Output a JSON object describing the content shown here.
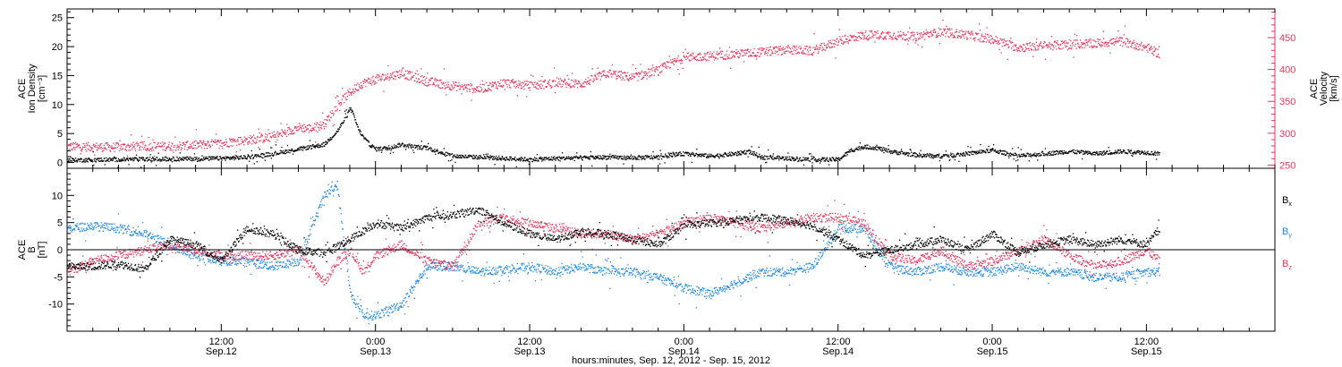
{
  "colors": {
    "black": "#000000",
    "pink": "#e8365d",
    "blue": "#1e88e5"
  },
  "x_axis": {
    "title": "hours:minutes, Sep. 12, 2012 - Sep. 15, 2012",
    "range_hours": [
      0,
      94
    ],
    "ticks": [
      {
        "hour": 12,
        "time": "12:00",
        "date": "Sep.12"
      },
      {
        "hour": 24,
        "time": "0:00",
        "date": "Sep.13"
      },
      {
        "hour": 36,
        "time": "12:00",
        "date": "Sep.13"
      },
      {
        "hour": 48,
        "time": "0:00",
        "date": "Sep.14"
      },
      {
        "hour": 60,
        "time": "12:00",
        "date": "Sep.14"
      },
      {
        "hour": 72,
        "time": "0:00",
        "date": "Sep.15"
      },
      {
        "hour": 84,
        "time": "12:00",
        "date": "Sep.15"
      }
    ]
  },
  "chart_data": [
    {
      "type": "scatter",
      "panel": "top",
      "ylabel_left": [
        "ACE",
        "Ion Density",
        "[cm⁻³]"
      ],
      "ylabel_right": [
        "ACE",
        "Velocity",
        "[km/s]"
      ],
      "ylim_left": [
        -1,
        26.5
      ],
      "ylim_right": [
        245,
        495
      ],
      "yticks_left": [
        "0",
        "5",
        "10",
        "15",
        "20",
        "25"
      ],
      "yticks_right": [
        "250",
        "300",
        "350",
        "400",
        "450"
      ],
      "series": [
        {
          "axis": "left",
          "color": "#000000",
          "x": [
            0,
            4,
            8,
            12,
            14,
            16,
            18,
            20,
            21,
            21.7,
            22,
            22.3,
            22.6,
            23,
            23.5,
            24,
            25,
            26,
            27,
            28,
            30,
            32,
            34,
            36,
            38,
            40,
            42,
            44,
            46,
            47,
            48,
            50,
            52,
            53,
            54,
            56,
            58,
            60,
            61,
            62,
            63,
            64,
            66,
            68,
            70,
            72,
            74,
            76,
            78,
            80,
            82,
            84,
            85
          ],
          "y": [
            0.5,
            0.6,
            0.7,
            0.8,
            1.0,
            1.6,
            2.4,
            3.2,
            5.5,
            8.0,
            9.5,
            8.0,
            6.0,
            4.5,
            3.2,
            2.4,
            2.6,
            3.2,
            2.8,
            2.6,
            1.2,
            1.0,
            0.8,
            0.6,
            0.8,
            0.9,
            1.0,
            0.9,
            1.0,
            1.4,
            1.6,
            1.2,
            1.6,
            2.0,
            1.0,
            0.8,
            0.6,
            0.6,
            2.2,
            2.8,
            2.6,
            2.0,
            1.4,
            1.2,
            1.6,
            2.2,
            1.2,
            1.6,
            2.0,
            1.6,
            2.0,
            1.8,
            1.6
          ]
        },
        {
          "axis": "right",
          "color": "#e8365d",
          "x": [
            0,
            3,
            6,
            9,
            12,
            14,
            16,
            18,
            19,
            20,
            21,
            22,
            23,
            24,
            26,
            28,
            30,
            32,
            34,
            36,
            38,
            40,
            42,
            44,
            46,
            48,
            50,
            52,
            54,
            56,
            58,
            60,
            62,
            64,
            66,
            68,
            70,
            72,
            74,
            76,
            78,
            80,
            82,
            84,
            85
          ],
          "y": [
            280,
            279,
            280,
            281,
            285,
            290,
            295,
            310,
            308,
            315,
            345,
            365,
            380,
            385,
            395,
            382,
            375,
            370,
            380,
            375,
            380,
            378,
            395,
            388,
            400,
            420,
            422,
            425,
            428,
            432,
            430,
            445,
            455,
            455,
            452,
            460,
            455,
            448,
            435,
            438,
            440,
            442,
            445,
            435,
            425
          ]
        }
      ]
    },
    {
      "type": "scatter",
      "panel": "bottom",
      "ylabel_left": [
        "ACE",
        "B",
        "[nT]"
      ],
      "ylim": [
        -15,
        15
      ],
      "yticks": [
        "-10",
        "-5",
        "0",
        "5",
        "10"
      ],
      "legend": {
        "placement": "right",
        "entries": [
          "B",
          "B",
          "B"
        ],
        "subscripts": [
          "x",
          "y",
          "z"
        ]
      },
      "series": [
        {
          "component": "Bx",
          "color": "#000000",
          "x": [
            0,
            2,
            4,
            6,
            8,
            10,
            12,
            14,
            16,
            18,
            20,
            22,
            24,
            26,
            28,
            30,
            32,
            34,
            36,
            38,
            40,
            42,
            44,
            46,
            48,
            50,
            52,
            54,
            56,
            58,
            60,
            62,
            64,
            66,
            68,
            70,
            72,
            74,
            76,
            78,
            80,
            82,
            84,
            85
          ],
          "y": [
            -3,
            -3,
            -2.5,
            -3.5,
            2,
            1,
            -2,
            4,
            3,
            0,
            -0.5,
            2,
            5,
            4,
            6,
            6.5,
            7.5,
            5,
            3,
            2,
            3.5,
            3,
            2,
            1,
            4.5,
            5,
            5.5,
            6,
            5.5,
            4.5,
            2,
            -1,
            0,
            1,
            2,
            0,
            3,
            -0.5,
            1,
            2,
            1,
            2,
            1,
            4
          ]
        },
        {
          "component": "By",
          "color": "#1e88e5",
          "x": [
            0,
            2,
            4,
            6,
            8,
            10,
            12,
            14,
            16,
            18,
            20,
            21,
            22,
            23,
            24,
            26,
            28,
            30,
            32,
            34,
            36,
            38,
            40,
            42,
            44,
            46,
            48,
            50,
            52,
            54,
            56,
            58,
            60,
            62,
            64,
            66,
            68,
            70,
            72,
            74,
            76,
            78,
            80,
            82,
            84,
            85
          ],
          "y": [
            4,
            4.5,
            4,
            3,
            1,
            -1,
            -2,
            -2,
            -3,
            -2,
            10,
            12,
            -8,
            -12,
            -12,
            -10,
            -3,
            -3,
            -4,
            -3.5,
            -3,
            -4,
            -3,
            -4,
            -4,
            -5,
            -7,
            -8,
            -6,
            -4,
            -4,
            -3,
            4,
            4,
            -3,
            -4,
            -3,
            -4,
            -4,
            -3,
            -4,
            -4,
            -5,
            -5,
            -4,
            -4
          ]
        },
        {
          "component": "Bz",
          "color": "#e8365d",
          "x": [
            0,
            2,
            4,
            6,
            8,
            10,
            12,
            14,
            16,
            18,
            20,
            21,
            22,
            23,
            24,
            26,
            28,
            30,
            32,
            34,
            36,
            38,
            40,
            42,
            44,
            46,
            48,
            50,
            52,
            54,
            56,
            58,
            60,
            62,
            64,
            66,
            68,
            70,
            72,
            74,
            76,
            78,
            80,
            82,
            84,
            85
          ],
          "y": [
            -4,
            -2,
            -1,
            0,
            1,
            0,
            -1,
            -1,
            -1,
            0,
            -6,
            -2,
            0,
            -4,
            -1,
            1,
            -2,
            -3,
            5,
            6,
            5,
            4,
            3,
            3,
            2,
            3,
            5,
            6,
            5,
            4,
            5,
            6,
            6,
            5,
            -1,
            -2,
            0,
            -3,
            -2,
            0,
            2,
            -1,
            -3,
            -2,
            0,
            -2
          ]
        }
      ]
    }
  ]
}
